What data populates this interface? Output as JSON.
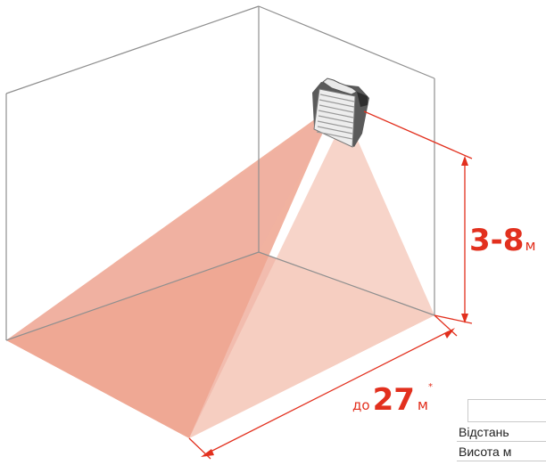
{
  "labels": {
    "height_range": "3-8",
    "height_unit": "м",
    "distance_prefix": "до",
    "distance_value": "27",
    "distance_unit": "м",
    "distance_note_mark": "*"
  },
  "table": {
    "rows": [
      "Відстань",
      "Висота м"
    ]
  },
  "colors": {
    "accent": "#e2301e",
    "room_lines": "#8f8f8f",
    "beam_light": "#f5c7bb",
    "beam_dark": "#eda290"
  }
}
